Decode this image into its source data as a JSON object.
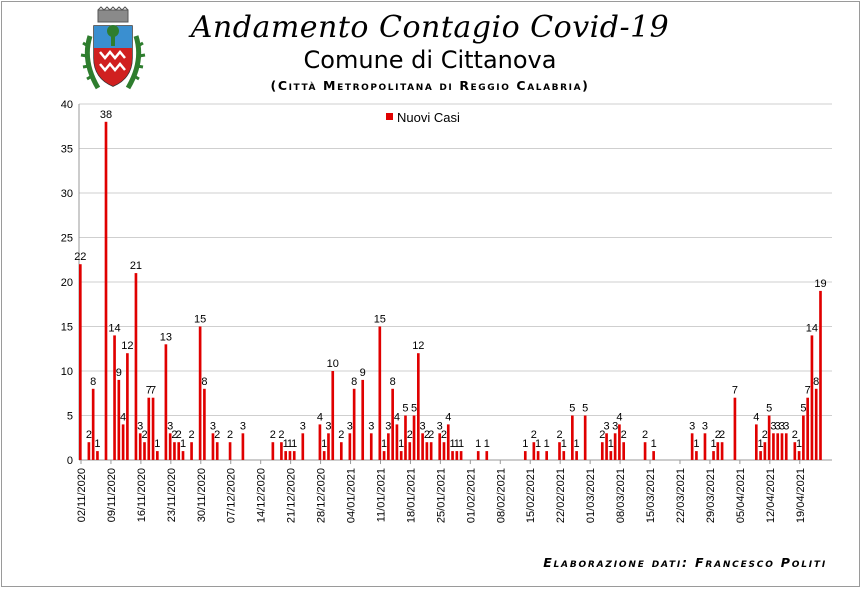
{
  "header": {
    "title": "Andamento Contagio Covid-19",
    "subtitle": "Comune di Cittanova",
    "subtitle2": "(Città Metropolitana di Reggio Calabria)",
    "credit": "Elaborazione dati: Francesco Politi"
  },
  "colors": {
    "bar": "#e00000",
    "grid": "#cfcfcf",
    "axis": "#9a9a9a"
  },
  "chart_data": {
    "type": "bar",
    "series": [
      {
        "name": "Nuovi Casi",
        "color": "#e00000"
      }
    ],
    "ylim": [
      0,
      40
    ],
    "yticks": [
      0,
      5,
      10,
      15,
      20,
      25,
      30,
      35,
      40
    ],
    "grid": true,
    "legend": "top",
    "day_count": 176,
    "xtick_labels": [
      "02/11/2020",
      "09/11/2020",
      "16/11/2020",
      "23/11/2020",
      "30/11/2020",
      "07/12/2020",
      "14/12/2020",
      "21/12/2020",
      "28/12/2020",
      "04/01/2021",
      "11/01/2021",
      "18/01/2021",
      "25/01/2021",
      "01/02/2021",
      "08/02/2021",
      "15/02/2021",
      "22/02/2021",
      "01/03/2021",
      "08/03/2021",
      "15/03/2021",
      "22/03/2021",
      "29/03/2021",
      "05/04/2021",
      "12/04/2021",
      "19/04/2021"
    ],
    "points": [
      [
        "02/11/2020",
        22
      ],
      [
        "04/11/2020",
        2
      ],
      [
        "05/11/2020",
        8
      ],
      [
        "06/11/2020",
        1
      ],
      [
        "08/11/2020",
        38
      ],
      [
        "10/11/2020",
        14
      ],
      [
        "11/11/2020",
        9
      ],
      [
        "12/11/2020",
        4
      ],
      [
        "13/11/2020",
        12
      ],
      [
        "15/11/2020",
        21
      ],
      [
        "16/11/2020",
        3
      ],
      [
        "17/11/2020",
        2
      ],
      [
        "18/11/2020",
        7
      ],
      [
        "19/11/2020",
        7
      ],
      [
        "20/11/2020",
        1
      ],
      [
        "22/11/2020",
        13
      ],
      [
        "23/11/2020",
        3
      ],
      [
        "24/11/2020",
        2
      ],
      [
        "25/11/2020",
        2
      ],
      [
        "26/11/2020",
        1
      ],
      [
        "28/11/2020",
        2
      ],
      [
        "30/11/2020",
        15
      ],
      [
        "01/12/2020",
        8
      ],
      [
        "03/12/2020",
        3
      ],
      [
        "04/12/2020",
        2
      ],
      [
        "07/12/2020",
        2
      ],
      [
        "10/12/2020",
        3
      ],
      [
        "17/12/2020",
        2
      ],
      [
        "19/12/2020",
        2
      ],
      [
        "20/12/2020",
        1
      ],
      [
        "21/12/2020",
        1
      ],
      [
        "22/12/2020",
        1
      ],
      [
        "24/12/2020",
        3
      ],
      [
        "28/12/2020",
        4
      ],
      [
        "29/12/2020",
        1
      ],
      [
        "30/12/2020",
        3
      ],
      [
        "31/12/2020",
        10
      ],
      [
        "02/01/2021",
        2
      ],
      [
        "04/01/2021",
        3
      ],
      [
        "05/01/2021",
        8
      ],
      [
        "07/01/2021",
        9
      ],
      [
        "09/01/2021",
        3
      ],
      [
        "11/01/2021",
        15
      ],
      [
        "12/01/2021",
        1
      ],
      [
        "13/01/2021",
        3
      ],
      [
        "14/01/2021",
        8
      ],
      [
        "15/01/2021",
        4
      ],
      [
        "16/01/2021",
        1
      ],
      [
        "17/01/2021",
        5
      ],
      [
        "18/01/2021",
        2
      ],
      [
        "19/01/2021",
        5
      ],
      [
        "20/01/2021",
        12
      ],
      [
        "21/01/2021",
        3
      ],
      [
        "22/01/2021",
        2
      ],
      [
        "23/01/2021",
        2
      ],
      [
        "25/01/2021",
        3
      ],
      [
        "26/01/2021",
        2
      ],
      [
        "27/01/2021",
        4
      ],
      [
        "28/01/2021",
        1
      ],
      [
        "29/01/2021",
        1
      ],
      [
        "30/01/2021",
        1
      ],
      [
        "03/02/2021",
        1
      ],
      [
        "05/02/2021",
        1
      ],
      [
        "14/02/2021",
        1
      ],
      [
        "16/02/2021",
        2
      ],
      [
        "17/02/2021",
        1
      ],
      [
        "19/02/2021",
        1
      ],
      [
        "22/02/2021",
        2
      ],
      [
        "23/02/2021",
        1
      ],
      [
        "25/02/2021",
        5
      ],
      [
        "26/02/2021",
        1
      ],
      [
        "28/02/2021",
        5
      ],
      [
        "04/03/2021",
        2
      ],
      [
        "05/03/2021",
        3
      ],
      [
        "06/03/2021",
        1
      ],
      [
        "07/03/2021",
        3
      ],
      [
        "08/03/2021",
        4
      ],
      [
        "09/03/2021",
        2
      ],
      [
        "14/03/2021",
        2
      ],
      [
        "16/03/2021",
        1
      ],
      [
        "25/03/2021",
        3
      ],
      [
        "26/03/2021",
        1
      ],
      [
        "28/03/2021",
        3
      ],
      [
        "30/03/2021",
        1
      ],
      [
        "31/03/2021",
        2
      ],
      [
        "01/04/2021",
        2
      ],
      [
        "04/04/2021",
        7
      ],
      [
        "09/04/2021",
        4
      ],
      [
        "10/04/2021",
        1
      ],
      [
        "11/04/2021",
        2
      ],
      [
        "12/04/2021",
        5
      ],
      [
        "13/04/2021",
        3
      ],
      [
        "14/04/2021",
        3
      ],
      [
        "15/04/2021",
        3
      ],
      [
        "16/04/2021",
        3
      ],
      [
        "18/04/2021",
        2
      ],
      [
        "19/04/2021",
        1
      ],
      [
        "20/04/2021",
        5
      ],
      [
        "21/04/2021",
        7
      ],
      [
        "22/04/2021",
        14
      ],
      [
        "23/04/2021",
        8
      ],
      [
        "24/04/2021",
        19
      ]
    ]
  }
}
